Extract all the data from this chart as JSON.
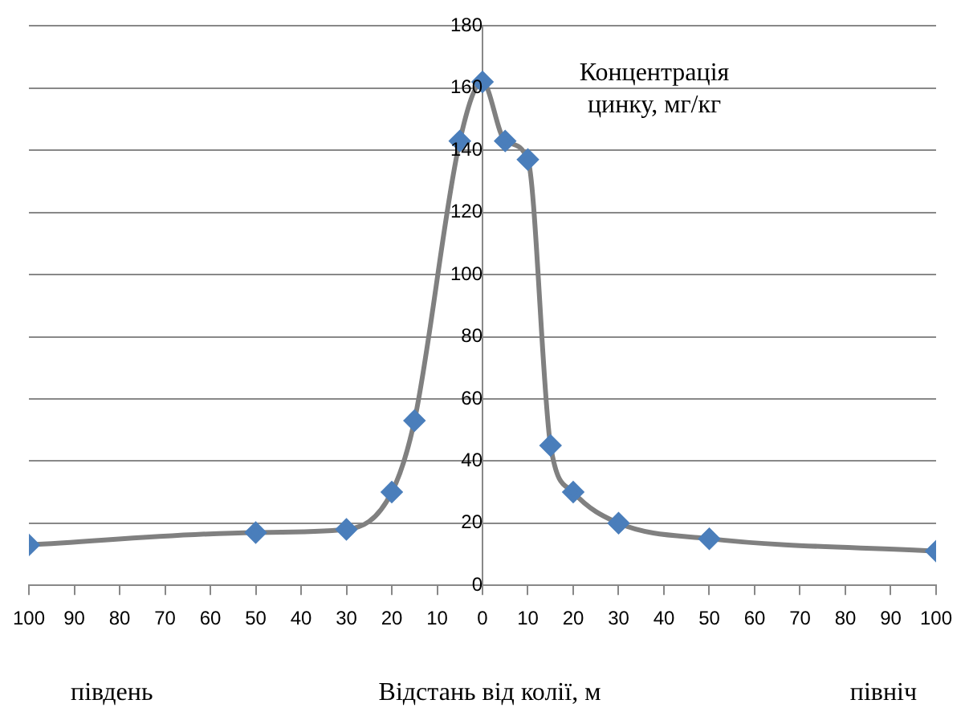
{
  "chart_data": {
    "type": "line",
    "ylabel": "Концентрація цинку, мг/кг",
    "xlabel": "Відстань від колії, м",
    "annotations": [
      "південь",
      "північ"
    ],
    "x": [
      -100,
      -50,
      -30,
      -20,
      -15,
      -5,
      0,
      5,
      10,
      15,
      20,
      30,
      50,
      100
    ],
    "series": [
      {
        "color": "#808080",
        "colors": [
          "#4a7ebb",
          "#4a7ebb",
          "#4a7ebb",
          "#4a7ebb",
          "#4a7ebb",
          "#4a7ebb",
          "#4a7ebb",
          "#4a7ebb",
          "#4a7ebb",
          "#4a7ebb",
          "#4a7ebb",
          "#4a7ebb",
          "#4a7ebb",
          "#4a7ebb"
        ],
        "values": [
          13,
          17,
          18,
          30,
          53,
          143,
          162,
          143,
          137,
          45,
          30,
          20,
          15,
          11
        ]
      }
    ],
    "marker": "diamond",
    "xlim": [
      -100,
      100
    ],
    "xticks": [
      {
        "value": -100,
        "label": "100"
      },
      {
        "value": -90,
        "label": "90"
      },
      {
        "value": -80,
        "label": "80"
      },
      {
        "value": -70,
        "label": "70"
      },
      {
        "value": -60,
        "label": "60"
      },
      {
        "value": -50,
        "label": "50"
      },
      {
        "value": -40,
        "label": "40"
      },
      {
        "value": -30,
        "label": "30"
      },
      {
        "value": -20,
        "label": "20"
      },
      {
        "value": -10,
        "label": "10"
      },
      0,
      10,
      20,
      30,
      40,
      50,
      60,
      70,
      80,
      90,
      100
    ],
    "ylim": [
      0,
      180
    ],
    "yticks": [
      0,
      20,
      40,
      60,
      80,
      100,
      120,
      140,
      160,
      180
    ],
    "grid": "y",
    "legend": false
  }
}
